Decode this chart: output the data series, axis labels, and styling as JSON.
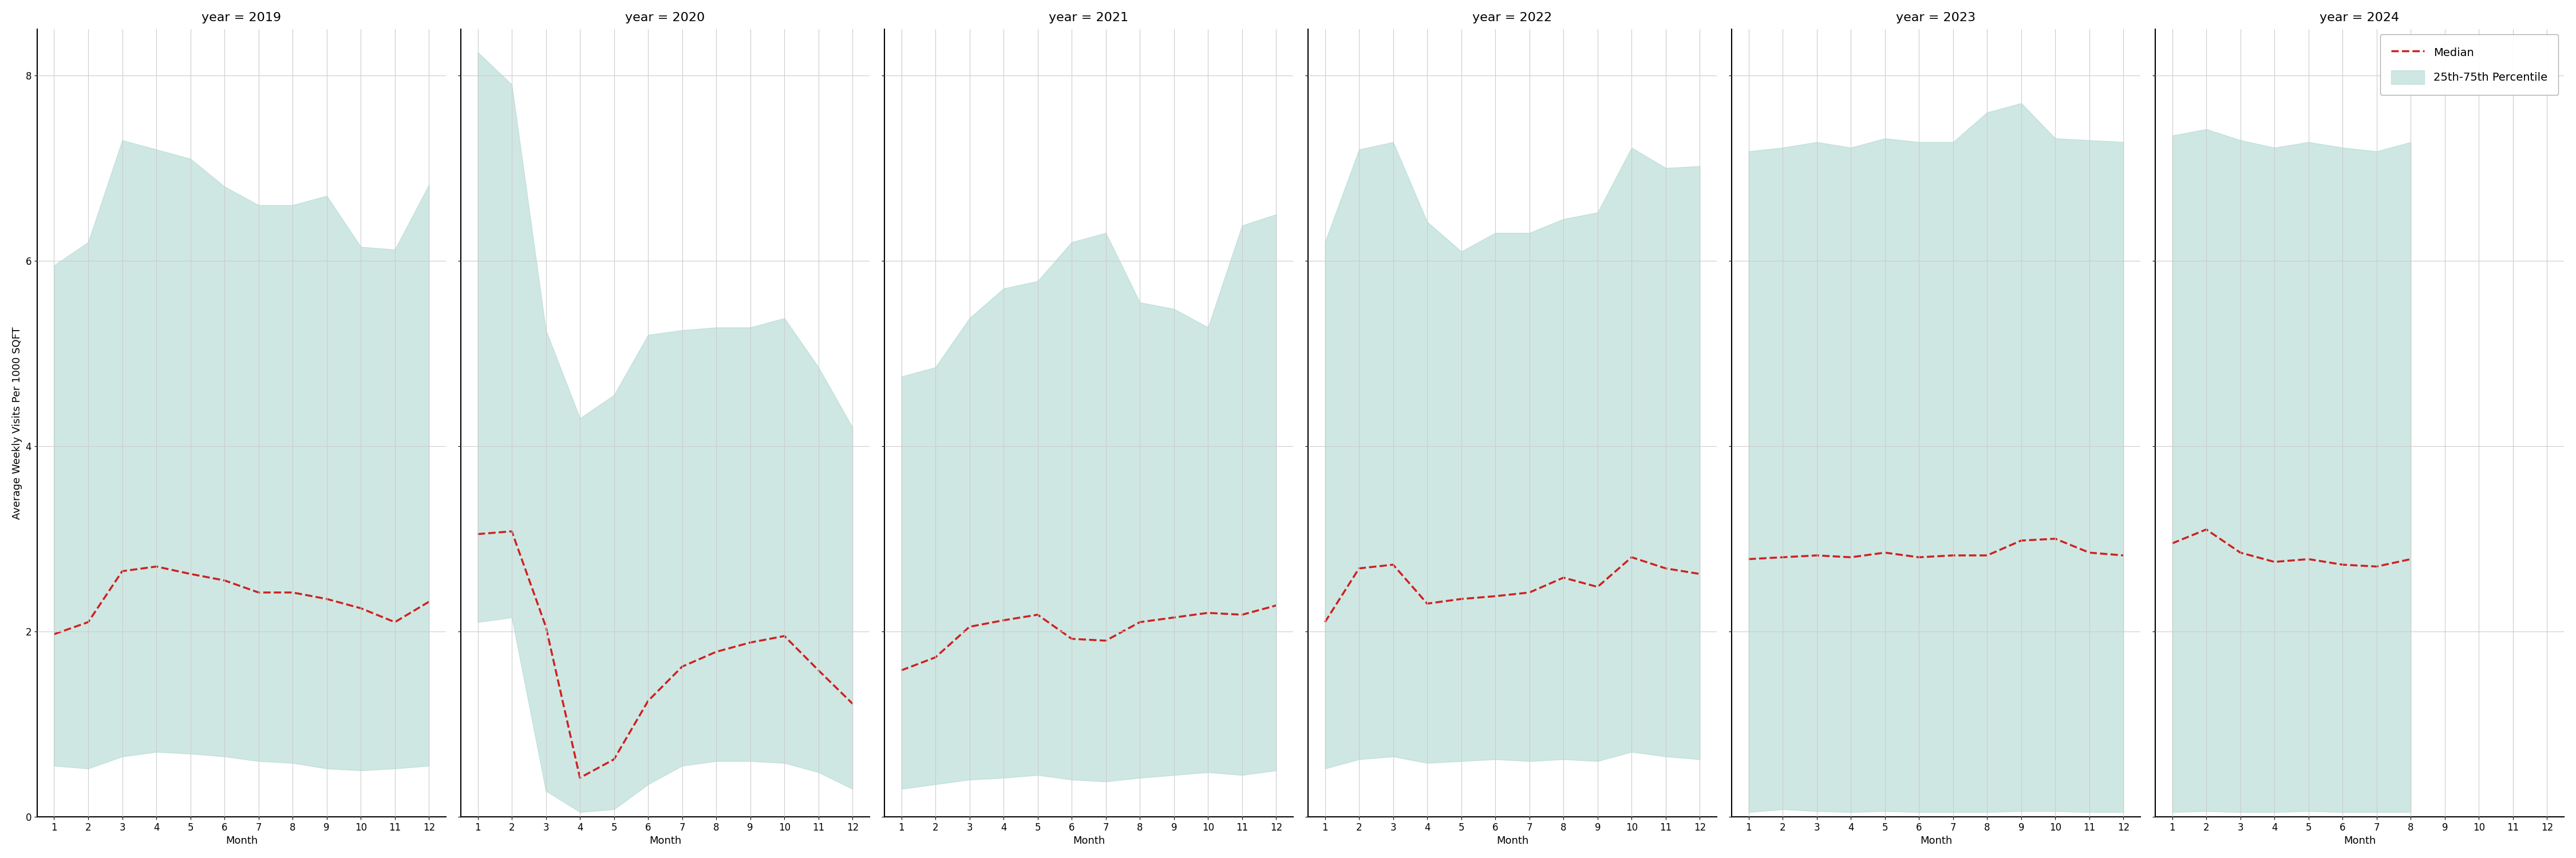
{
  "years": [
    2019,
    2020,
    2021,
    2022,
    2023,
    2024
  ],
  "months": [
    1,
    2,
    3,
    4,
    5,
    6,
    7,
    8,
    9,
    10,
    11,
    12
  ],
  "median": {
    "2019": [
      1.97,
      2.1,
      2.65,
      2.7,
      2.62,
      2.55,
      2.42,
      2.42,
      2.35,
      2.25,
      2.1,
      2.32
    ],
    "2020": [
      3.05,
      3.08,
      2.05,
      0.42,
      0.62,
      1.25,
      1.62,
      1.78,
      1.88,
      1.95,
      1.58,
      1.22
    ],
    "2021": [
      1.58,
      1.72,
      2.05,
      2.12,
      2.18,
      1.92,
      1.9,
      2.1,
      2.15,
      2.2,
      2.18,
      2.28
    ],
    "2022": [
      2.1,
      2.68,
      2.72,
      2.3,
      2.35,
      2.38,
      2.42,
      2.58,
      2.48,
      2.8,
      2.68,
      2.62
    ],
    "2023": [
      2.78,
      2.8,
      2.82,
      2.8,
      2.85,
      2.8,
      2.82,
      2.82,
      2.98,
      3.0,
      2.85,
      2.82
    ],
    "2024": [
      2.95,
      3.1,
      2.85,
      2.75,
      2.78,
      2.72,
      2.7,
      2.78,
      null,
      null,
      null,
      null
    ]
  },
  "p25": {
    "2019": [
      0.55,
      0.52,
      0.65,
      0.7,
      0.68,
      0.65,
      0.6,
      0.58,
      0.52,
      0.5,
      0.52,
      0.55
    ],
    "2020": [
      2.1,
      2.15,
      0.28,
      0.05,
      0.08,
      0.35,
      0.55,
      0.6,
      0.6,
      0.58,
      0.48,
      0.3
    ],
    "2021": [
      0.3,
      0.35,
      0.4,
      0.42,
      0.45,
      0.4,
      0.38,
      0.42,
      0.45,
      0.48,
      0.45,
      0.5
    ],
    "2022": [
      0.52,
      0.62,
      0.65,
      0.58,
      0.6,
      0.62,
      0.6,
      0.62,
      0.6,
      0.7,
      0.65,
      0.62
    ],
    "2023": [
      0.05,
      0.08,
      0.06,
      0.05,
      0.06,
      0.05,
      0.05,
      0.05,
      0.06,
      0.06,
      0.05,
      0.05
    ],
    "2024": [
      0.05,
      0.06,
      0.05,
      0.05,
      0.06,
      0.05,
      0.05,
      0.05,
      null,
      null,
      null,
      null
    ]
  },
  "p75": {
    "2019": [
      5.95,
      6.2,
      7.3,
      7.2,
      7.1,
      6.8,
      6.6,
      6.6,
      6.7,
      6.15,
      6.12,
      6.82
    ],
    "2020": [
      8.25,
      7.9,
      5.25,
      4.3,
      4.55,
      5.2,
      5.25,
      5.28,
      5.28,
      5.38,
      4.85,
      4.2
    ],
    "2021": [
      4.75,
      4.85,
      5.38,
      5.7,
      5.78,
      6.2,
      6.3,
      5.55,
      5.48,
      5.28,
      6.38,
      6.5
    ],
    "2022": [
      6.2,
      7.2,
      7.28,
      6.42,
      6.1,
      6.3,
      6.3,
      6.45,
      6.52,
      7.22,
      7.0,
      7.02
    ],
    "2023": [
      7.18,
      7.22,
      7.28,
      7.22,
      7.32,
      7.28,
      7.28,
      7.6,
      7.7,
      7.32,
      7.3,
      7.28
    ],
    "2024": [
      7.35,
      7.42,
      7.3,
      7.22,
      7.28,
      7.22,
      7.18,
      7.28,
      null,
      null,
      null,
      null
    ]
  },
  "fill_color": "#a8d5cc",
  "fill_alpha": 0.55,
  "line_color": "#cc2222",
  "line_style": "--",
  "line_width": 2.5,
  "ylabel": "Average Weekly Visits Per 1000 SQFT",
  "xlabel": "Month",
  "ylim": [
    0,
    8.5
  ],
  "yticks": [
    0,
    2,
    4,
    6,
    8
  ],
  "bg_color": "#ffffff",
  "grid_color": "#cccccc",
  "title_fontsize": 16,
  "label_fontsize": 13,
  "tick_fontsize": 12,
  "legend_labels": [
    "Median",
    "25th-75th Percentile"
  ]
}
